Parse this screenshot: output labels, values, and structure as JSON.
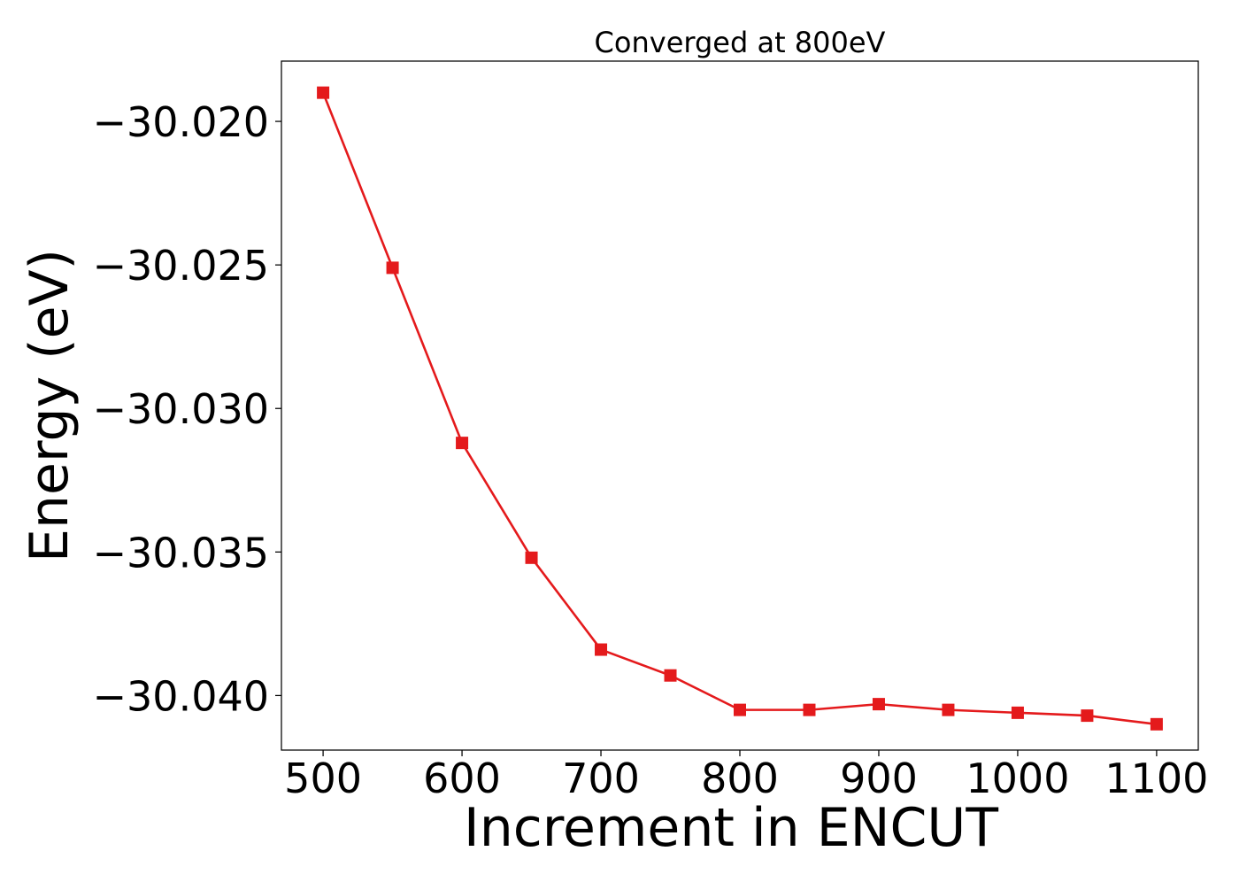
{
  "chart_data": {
    "type": "line",
    "title": "Converged at 800eV",
    "xlabel": "Increment in ENCUT",
    "ylabel": "Energy (eV)",
    "xlim": [
      470,
      1130
    ],
    "ylim": [
      -30.0419,
      -30.0179
    ],
    "xticks": [
      500,
      600,
      700,
      800,
      900,
      1000,
      1100
    ],
    "xtick_labels": [
      "500",
      "600",
      "700",
      "800",
      "900",
      "1000",
      "1100"
    ],
    "yticks": [
      -30.02,
      -30.025,
      -30.03,
      -30.035,
      -30.04
    ],
    "ytick_labels": [
      "−30.020",
      "−30.025",
      "−30.030",
      "−30.035",
      "−30.040"
    ],
    "grid": false,
    "legend": "none",
    "series": [
      {
        "color": "#e41a1c",
        "marker": "square",
        "x": [
          500,
          550,
          600,
          650,
          700,
          750,
          800,
          850,
          900,
          950,
          1000,
          1050,
          1100
        ],
        "y": [
          -30.019,
          -30.0251,
          -30.0312,
          -30.0352,
          -30.0384,
          -30.0393,
          -30.0405,
          -30.0405,
          -30.0403,
          -30.0405,
          -30.0406,
          -30.0407,
          -30.041
        ]
      }
    ]
  }
}
